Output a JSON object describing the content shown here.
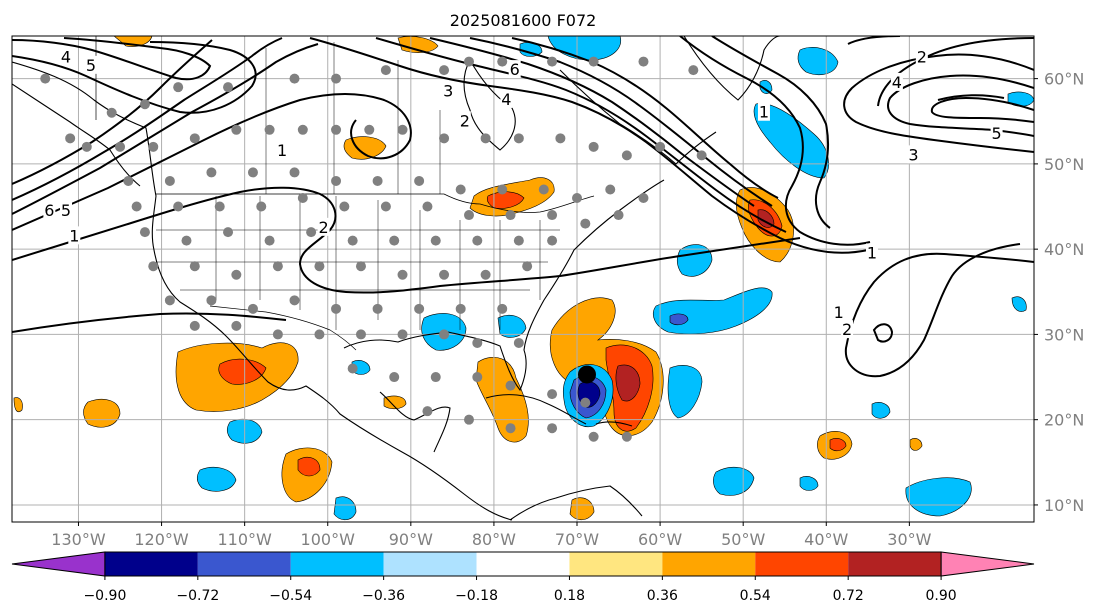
{
  "title": "2025081600 F072",
  "map": {
    "projection": "plate-carree",
    "lon_range": [
      -138,
      -15
    ],
    "lat_range": [
      8,
      65
    ],
    "longitude_ticks": [
      "130°W",
      "120°W",
      "110°W",
      "100°W",
      "90°W",
      "80°W",
      "70°W",
      "60°W",
      "50°W",
      "40°W",
      "30°W"
    ],
    "longitude_values": [
      -130,
      -120,
      -110,
      -100,
      -90,
      -80,
      -70,
      -60,
      -50,
      -40,
      -30
    ],
    "latitude_ticks": [
      "60°N",
      "50°N",
      "40°N",
      "30°N",
      "20°N",
      "10°N"
    ],
    "latitude_values": [
      60,
      50,
      40,
      30,
      20,
      10
    ],
    "grid": true,
    "contour_labels": [
      {
        "text": "4",
        "lon": -131.5,
        "lat": 62.5
      },
      {
        "text": "5",
        "lon": -128.5,
        "lat": 61.5
      },
      {
        "text": "6",
        "lon": -133.5,
        "lat": 44.5
      },
      {
        "text": "5",
        "lon": -131.5,
        "lat": 44.5
      },
      {
        "text": "1",
        "lon": -130.5,
        "lat": 41.5
      },
      {
        "text": "1",
        "lon": -105.5,
        "lat": 51.5
      },
      {
        "text": "2",
        "lon": -100.5,
        "lat": 42.5
      },
      {
        "text": "3",
        "lon": -85.5,
        "lat": 58.5
      },
      {
        "text": "2",
        "lon": -83.5,
        "lat": 55.0
      },
      {
        "text": "4",
        "lon": -78.5,
        "lat": 57.5
      },
      {
        "text": "6",
        "lon": -77.5,
        "lat": 61.0
      },
      {
        "text": "1",
        "lon": -47.5,
        "lat": 56.0
      },
      {
        "text": "2",
        "lon": -28.5,
        "lat": 62.5
      },
      {
        "text": "4",
        "lon": -31.5,
        "lat": 59.5
      },
      {
        "text": "3",
        "lon": -29.5,
        "lat": 51.0
      },
      {
        "text": "5",
        "lon": -19.5,
        "lat": 53.5
      },
      {
        "text": "1",
        "lon": -34.5,
        "lat": 39.5
      },
      {
        "text": "1",
        "lon": -38.5,
        "lat": 32.5
      },
      {
        "text": "2",
        "lon": -37.5,
        "lat": 30.5
      }
    ],
    "storm_marker": {
      "lon": -68.8,
      "lat": 25.3
    },
    "station_points": [
      [
        -134,
        60
      ],
      [
        -131,
        53
      ],
      [
        -126,
        56
      ],
      [
        -122,
        57
      ],
      [
        -118,
        59
      ],
      [
        -112,
        59
      ],
      [
        -104,
        60
      ],
      [
        -99,
        60
      ],
      [
        -93,
        61
      ],
      [
        -86,
        61
      ],
      [
        -83,
        62
      ],
      [
        -79,
        62
      ],
      [
        -73,
        62
      ],
      [
        -68,
        62
      ],
      [
        -62,
        62
      ],
      [
        -56,
        61
      ],
      [
        -129,
        52
      ],
      [
        -125,
        52
      ],
      [
        -121,
        52
      ],
      [
        -116,
        53
      ],
      [
        -111,
        54
      ],
      [
        -107,
        54
      ],
      [
        -103,
        54
      ],
      [
        -99,
        54
      ],
      [
        -95,
        54
      ],
      [
        -91,
        54
      ],
      [
        -86,
        53
      ],
      [
        -81,
        53
      ],
      [
        -77,
        53
      ],
      [
        -72,
        53
      ],
      [
        -68,
        52
      ],
      [
        -64,
        51
      ],
      [
        -60,
        52
      ],
      [
        -55,
        51
      ],
      [
        -124,
        48
      ],
      [
        -119,
        48
      ],
      [
        -114,
        49
      ],
      [
        -109,
        49
      ],
      [
        -104,
        49
      ],
      [
        -99,
        48
      ],
      [
        -94,
        48
      ],
      [
        -89,
        48
      ],
      [
        -84,
        47
      ],
      [
        -79,
        47
      ],
      [
        -74,
        47
      ],
      [
        -70,
        46
      ],
      [
        -66,
        47
      ],
      [
        -62,
        46
      ],
      [
        -123,
        45
      ],
      [
        -118,
        45
      ],
      [
        -113,
        45
      ],
      [
        -108,
        45
      ],
      [
        -103,
        46
      ],
      [
        -98,
        45
      ],
      [
        -93,
        45
      ],
      [
        -88,
        45
      ],
      [
        -83,
        44
      ],
      [
        -78,
        44
      ],
      [
        -73,
        44
      ],
      [
        -69,
        43
      ],
      [
        -65,
        44
      ],
      [
        -122,
        42
      ],
      [
        -117,
        41
      ],
      [
        -112,
        42
      ],
      [
        -107,
        41
      ],
      [
        -102,
        42
      ],
      [
        -97,
        41
      ],
      [
        -92,
        41
      ],
      [
        -87,
        41
      ],
      [
        -82,
        41
      ],
      [
        -77,
        41
      ],
      [
        -73,
        41
      ],
      [
        -121,
        38
      ],
      [
        -116,
        38
      ],
      [
        -111,
        37
      ],
      [
        -106,
        38
      ],
      [
        -101,
        38
      ],
      [
        -96,
        38
      ],
      [
        -91,
        37
      ],
      [
        -86,
        37
      ],
      [
        -81,
        37
      ],
      [
        -76,
        38
      ],
      [
        -119,
        34
      ],
      [
        -114,
        34
      ],
      [
        -109,
        33
      ],
      [
        -104,
        34
      ],
      [
        -99,
        33
      ],
      [
        -94,
        33
      ],
      [
        -89,
        33
      ],
      [
        -84,
        33
      ],
      [
        -79,
        33
      ],
      [
        -116,
        31
      ],
      [
        -111,
        31
      ],
      [
        -106,
        30
      ],
      [
        -101,
        30
      ],
      [
        -96,
        30
      ],
      [
        -91,
        30
      ],
      [
        -86,
        30
      ],
      [
        -82,
        29
      ],
      [
        -77,
        29
      ],
      [
        -97,
        26
      ],
      [
        -92,
        25
      ],
      [
        -87,
        25
      ],
      [
        -82,
        25
      ],
      [
        -78,
        24
      ],
      [
        -73,
        23
      ],
      [
        -69,
        22
      ],
      [
        -88,
        21
      ],
      [
        -83,
        20
      ],
      [
        -78,
        19
      ],
      [
        -73,
        19
      ],
      [
        -68,
        18
      ],
      [
        -64,
        18
      ]
    ]
  },
  "colorbar": {
    "tick_labels": [
      "−0.90",
      "−0.72",
      "−0.54",
      "−0.36",
      "−0.18",
      "0.18",
      "0.36",
      "0.54",
      "0.72",
      "0.90"
    ],
    "levels": [
      -0.9,
      -0.72,
      -0.54,
      -0.36,
      -0.18,
      0.18,
      0.36,
      0.54,
      0.72,
      0.9
    ],
    "colors": [
      "#9932cc",
      "#00008b",
      "#3a57cf",
      "#00bfff",
      "#aee2ff",
      "#ffffff",
      "#ffe680",
      "#ffa500",
      "#ff4500",
      "#b22222",
      "#ff82b4"
    ],
    "extend": "both"
  }
}
